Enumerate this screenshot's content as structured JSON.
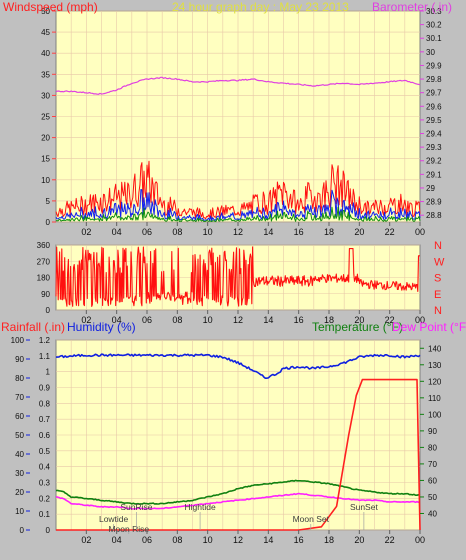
{
  "title": "24 hour graph day : May 23 2013",
  "colors": {
    "background": "#c0c0c0",
    "plot_bg": "#ffffc0",
    "grid": "#e8c8a8",
    "wind_label": "#ff2020",
    "title": "#e0e040",
    "barometer": "#e040e0",
    "rain": "#ff2020",
    "humidity": "#1020e0",
    "temperature": "#108010",
    "dewpoint": "#ff20ff",
    "gust": "#ff1010",
    "avgwind": "#1020f0",
    "lowwind": "#109010",
    "axis_text": "#101010"
  },
  "chart_data": [
    {
      "id": "wind-barometer",
      "type": "line",
      "left_label": "Windspeed (mph)",
      "right_label": "Barometer (.in)",
      "x_ticks": [
        "02",
        "04",
        "06",
        "08",
        "10",
        "12",
        "14",
        "16",
        "18",
        "20",
        "22",
        "00"
      ],
      "left_ticks": [
        0,
        5,
        10,
        15,
        20,
        25,
        30,
        35,
        40,
        45,
        50
      ],
      "left_lim": [
        0,
        50
      ],
      "right_ticks": [
        "28.8",
        "28.9",
        "29",
        "29.1",
        "29.2",
        "29.3",
        "29.4",
        "29.5",
        "29.6",
        "29.7",
        "29.8",
        "29.9",
        "30",
        "30.1",
        "30.2",
        "30.3"
      ],
      "right_lim": [
        28.75,
        30.3
      ],
      "grid": true,
      "barometer_x": [
        0,
        1,
        2,
        3,
        4,
        5,
        6,
        7,
        8,
        9,
        10,
        11,
        12,
        13,
        14,
        15,
        16,
        17,
        18,
        19,
        20,
        21,
        22,
        23,
        24
      ],
      "barometer_y": [
        29.71,
        29.71,
        29.7,
        29.69,
        29.72,
        29.77,
        29.8,
        29.81,
        29.8,
        29.78,
        29.78,
        29.79,
        29.79,
        29.8,
        29.78,
        29.77,
        29.76,
        29.75,
        29.76,
        29.77,
        29.76,
        29.77,
        29.78,
        29.79,
        29.76
      ],
      "gust_peaks_x": [
        0,
        1.5,
        3,
        4.8,
        5.5,
        6,
        7,
        8.5,
        10,
        11,
        12.5,
        13.5,
        14,
        15,
        16,
        16.7,
        17.5,
        18.3,
        19,
        19.8,
        20.5,
        21.5,
        22.7,
        23.5
      ],
      "gust_peaks_y": [
        4,
        6,
        8,
        10,
        14,
        16,
        7,
        4,
        3,
        4,
        5,
        8,
        7,
        12,
        6,
        10,
        9,
        15,
        12,
        7,
        5,
        6,
        7,
        5
      ]
    },
    {
      "id": "wind-direction",
      "type": "line",
      "left_ticks": [
        0,
        90,
        180,
        270,
        360
      ],
      "left_lim": [
        0,
        360
      ],
      "right_labels": [
        "N",
        "W",
        "S",
        "E",
        "N"
      ],
      "x_ticks": [
        "02",
        "04",
        "06",
        "08",
        "10",
        "12",
        "14",
        "16",
        "18",
        "20",
        "22",
        "00"
      ],
      "grid": true
    },
    {
      "id": "rain-humidity-temp",
      "type": "line",
      "labels": {
        "rain": "Rainfall (.in)",
        "humidity": "Humidity (%)",
        "temperature": "Temperature (°F)",
        "dewpoint": "Dew Point (°F)"
      },
      "rain_ticks": [
        "0",
        "0.1",
        "0.2",
        "0.3",
        "0.4",
        "0.5",
        "0.6",
        "0.7",
        "0.8",
        "0.9",
        "1",
        "1.1",
        "1.2"
      ],
      "rain_lim": [
        0,
        1.2
      ],
      "humidity_ticks": [
        0,
        10,
        20,
        30,
        40,
        50,
        60,
        70,
        80,
        90,
        100
      ],
      "humidity_lim": [
        0,
        100
      ],
      "temp_ticks": [
        40,
        50,
        60,
        70,
        80,
        90,
        100,
        110,
        120,
        130,
        140
      ],
      "temp_lim": [
        30,
        145
      ],
      "x_ticks": [
        "02",
        "04",
        "06",
        "08",
        "10",
        "12",
        "14",
        "16",
        "18",
        "20",
        "22",
        "00"
      ],
      "grid": true,
      "humidity_x": [
        0,
        2,
        4,
        6,
        8,
        10,
        11,
        12,
        13,
        13.8,
        14.5,
        15,
        16,
        17,
        18,
        19,
        20,
        21,
        22,
        23,
        24
      ],
      "humidity_y": [
        91,
        92,
        92,
        92,
        92,
        92,
        91,
        88,
        84,
        80,
        82,
        85,
        86,
        85,
        86,
        88,
        91,
        92,
        92,
        91,
        92
      ],
      "temp_x": [
        0,
        0.5,
        1,
        2,
        3,
        4,
        5,
        6,
        7,
        8,
        9,
        10,
        11,
        12,
        13,
        14,
        15,
        16,
        17,
        18,
        19,
        20,
        21,
        22,
        23,
        24
      ],
      "temp_y": [
        54,
        53,
        50,
        49,
        48,
        47,
        46,
        46,
        46,
        47,
        48,
        50,
        52,
        55,
        57,
        58,
        59,
        60,
        59,
        58,
        56,
        54,
        53,
        52,
        52,
        51
      ],
      "dew_x": [
        0,
        0.5,
        1,
        2,
        3,
        4,
        5,
        6,
        7,
        8,
        9,
        10,
        11,
        12,
        13,
        14,
        15,
        16,
        17,
        18,
        19,
        20,
        21,
        22,
        23,
        24
      ],
      "dew_y": [
        50,
        49,
        46,
        45,
        44,
        44,
        43,
        43,
        43,
        44,
        45,
        46,
        47,
        48,
        49,
        50,
        51,
        52,
        51,
        50,
        49,
        48,
        48,
        47,
        47,
        47
      ],
      "rain_x": [
        0,
        16,
        17.5,
        18.5,
        19.3,
        19.8,
        20.2,
        21,
        23.8,
        24
      ],
      "rain_y": [
        0,
        0,
        0.02,
        0.15,
        0.6,
        0.85,
        0.95,
        0.95,
        0.95,
        0
      ],
      "events": [
        {
          "label": "Lowtide",
          "x": 3.8,
          "row": 1
        },
        {
          "label": "Moon Rise",
          "x": 4.8,
          "row": 2
        },
        {
          "label": "SunRise",
          "x": 5.3,
          "row": 0
        },
        {
          "label": "Hightide",
          "x": 9.5,
          "row": 0
        },
        {
          "label": "Moon Set",
          "x": 16.8,
          "row": 1
        },
        {
          "label": "SunSet",
          "x": 20.3,
          "row": 0
        }
      ]
    }
  ]
}
